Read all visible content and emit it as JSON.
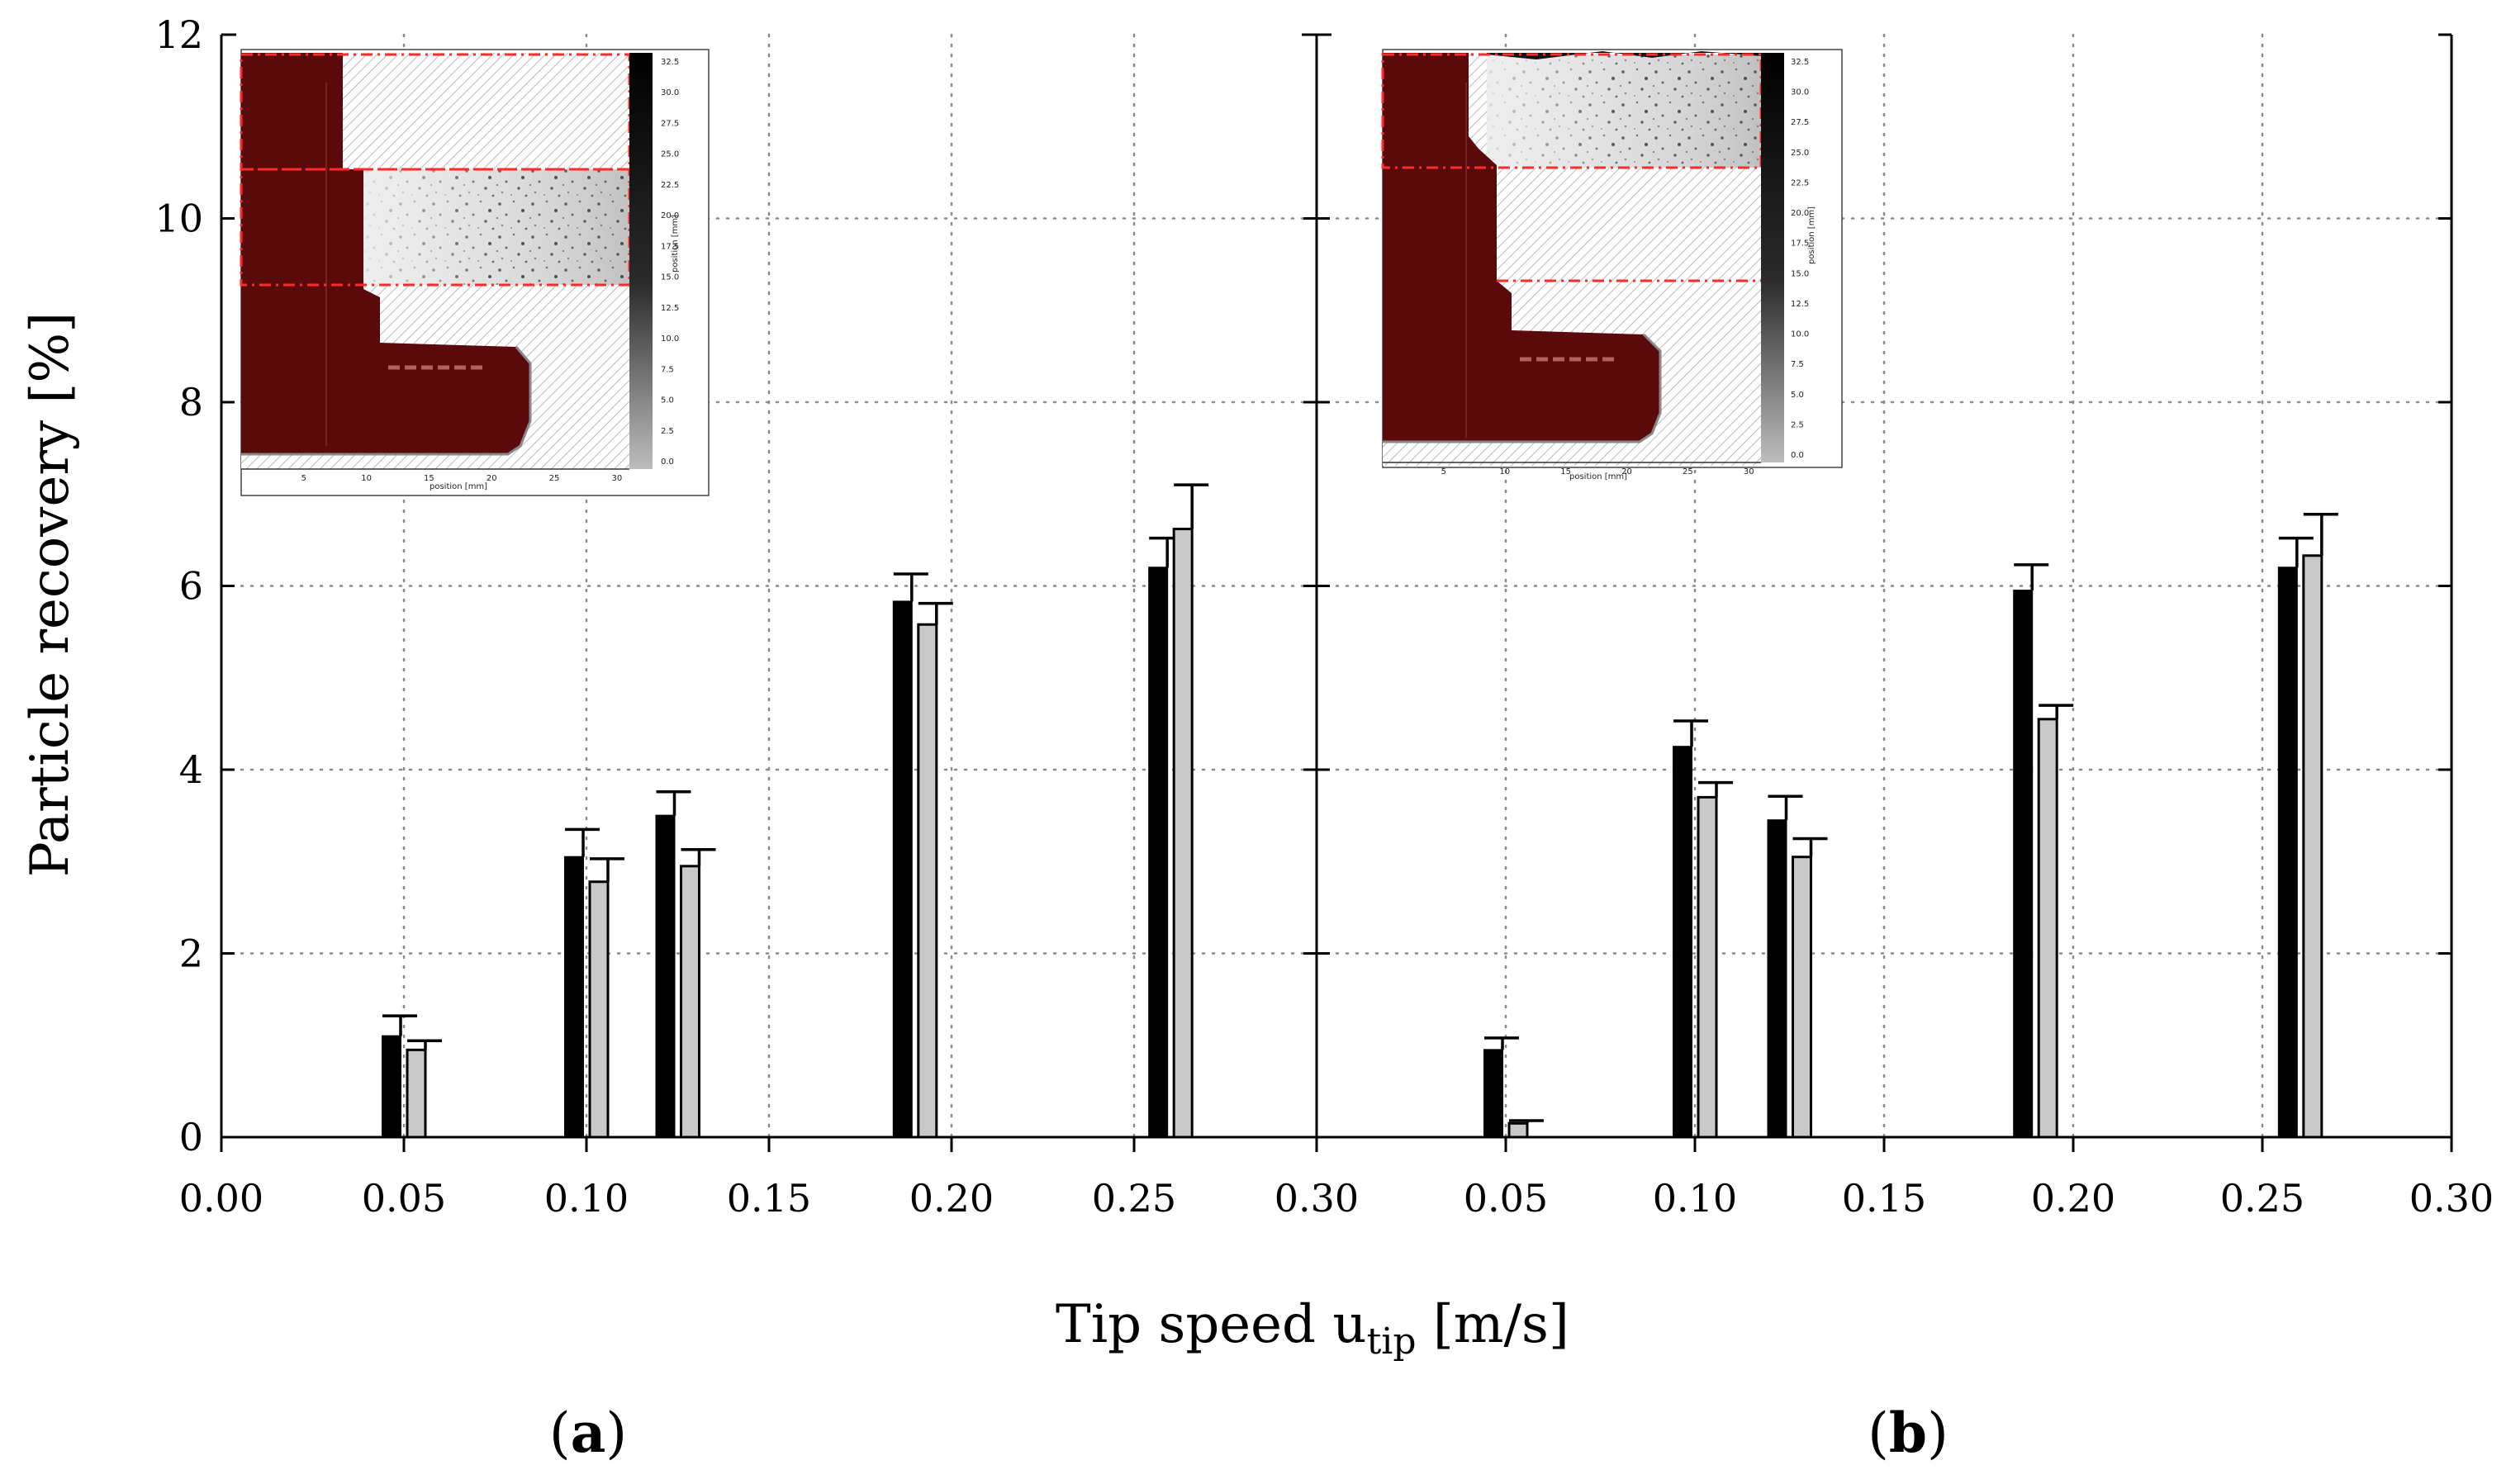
{
  "figure": {
    "y_axis_label": "Particle recovery [%]",
    "x_axis_label_main": "Tip speed u",
    "x_axis_label_sub": "tip",
    "x_axis_label_unit": " [m/s]",
    "panel_label_a": "a",
    "panel_label_b": "b",
    "colors": {
      "black_bar": "#000000",
      "gray_bar": "#c9c9c9",
      "inset_red": "#5a0a0a",
      "inset_dash": "#ff2a2a"
    }
  },
  "chart_data": [
    {
      "type": "bar",
      "panel": "a",
      "xlabel": "Tip speed u_tip [m/s]",
      "ylabel": "Particle recovery [%]",
      "xlim": [
        0.0,
        0.3
      ],
      "ylim": [
        0,
        12
      ],
      "x_ticks": [
        "0.00",
        "0.05",
        "0.10",
        "0.15",
        "0.20",
        "0.25",
        "0.30"
      ],
      "y_ticks": [
        "0",
        "2",
        "4",
        "6",
        "8",
        "10",
        "12"
      ],
      "grid": true,
      "x": [
        0.05,
        0.1,
        0.125,
        0.19,
        0.26
      ],
      "series": [
        {
          "name": "black",
          "values": [
            1.1,
            3.05,
            3.5,
            5.83,
            6.2
          ],
          "errors": [
            0.22,
            0.3,
            0.26,
            0.3,
            0.32
          ]
        },
        {
          "name": "gray",
          "values": [
            0.95,
            2.78,
            2.95,
            5.58,
            6.62
          ],
          "errors": [
            0.1,
            0.25,
            0.18,
            0.23,
            0.48
          ]
        }
      ]
    },
    {
      "type": "bar",
      "panel": "b",
      "xlabel": "Tip speed u_tip [m/s]",
      "ylabel": "Particle recovery [%]",
      "xlim": [
        0.0,
        0.3
      ],
      "ylim": [
        0,
        12
      ],
      "x_ticks": [
        "0.05",
        "0.10",
        "0.15",
        "0.20",
        "0.25",
        "0.30"
      ],
      "y_ticks": [
        "0",
        "2",
        "4",
        "6",
        "8",
        "10",
        "12"
      ],
      "grid": true,
      "x": [
        0.05,
        0.1,
        0.125,
        0.19,
        0.26
      ],
      "series": [
        {
          "name": "black",
          "values": [
            0.95,
            4.25,
            3.45,
            5.95,
            6.2
          ],
          "errors": [
            0.13,
            0.28,
            0.26,
            0.28,
            0.32
          ]
        },
        {
          "name": "gray",
          "values": [
            0.15,
            3.7,
            3.05,
            4.55,
            6.33
          ],
          "errors": [
            0.03,
            0.16,
            0.2,
            0.15,
            0.45
          ]
        }
      ]
    }
  ],
  "insets": [
    {
      "panel": "a",
      "highlight": "middle",
      "colorbar_ticks": [
        "32.5",
        "30.0",
        "27.5",
        "25.0",
        "22.5",
        "20.0",
        "17.5",
        "15.0",
        "12.5",
        "10.0",
        "7.5",
        "5.0",
        "2.5",
        "0.0"
      ],
      "x_ticks": [
        "5",
        "10",
        "15",
        "20",
        "25",
        "30"
      ],
      "x_label": "position [mm]",
      "y_label": "position [mm]"
    },
    {
      "panel": "b",
      "highlight": "top",
      "colorbar_ticks": [
        "32.5",
        "30.0",
        "27.5",
        "25.0",
        "22.5",
        "20.0",
        "17.5",
        "15.0",
        "12.5",
        "10.0",
        "7.5",
        "5.0",
        "2.5",
        "0.0"
      ],
      "x_ticks": [
        "5",
        "10",
        "15",
        "20",
        "25",
        "30"
      ],
      "x_label": "position [mm]",
      "y_label": "position [mm]"
    }
  ]
}
